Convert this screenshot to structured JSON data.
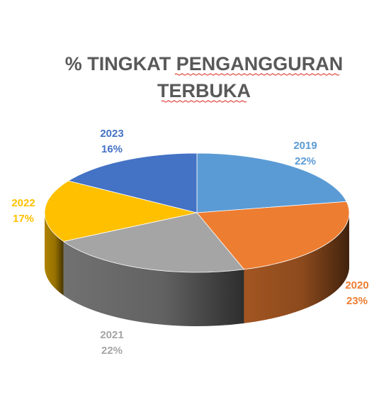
{
  "chart_data": {
    "type": "pie",
    "title": "% TINGKAT PENGANGGURAN TERBUKA",
    "title_lines": [
      "% TINGKAT PENGANGGURAN",
      "TERBUKA"
    ],
    "style": "3d",
    "legend": "none",
    "slices": [
      {
        "label": "2019",
        "value": 22,
        "value_label": "22%",
        "color": "#5b9bd5"
      },
      {
        "label": "2020",
        "value": 23,
        "value_label": "23%",
        "color": "#ed7d31"
      },
      {
        "label": "2021",
        "value": 22,
        "value_label": "22%",
        "color": "#a5a5a5"
      },
      {
        "label": "2022",
        "value": 17,
        "value_label": "17%",
        "color": "#ffc000"
      },
      {
        "label": "2023",
        "value": 16,
        "value_label": "16%",
        "color": "#4472c4"
      }
    ]
  }
}
